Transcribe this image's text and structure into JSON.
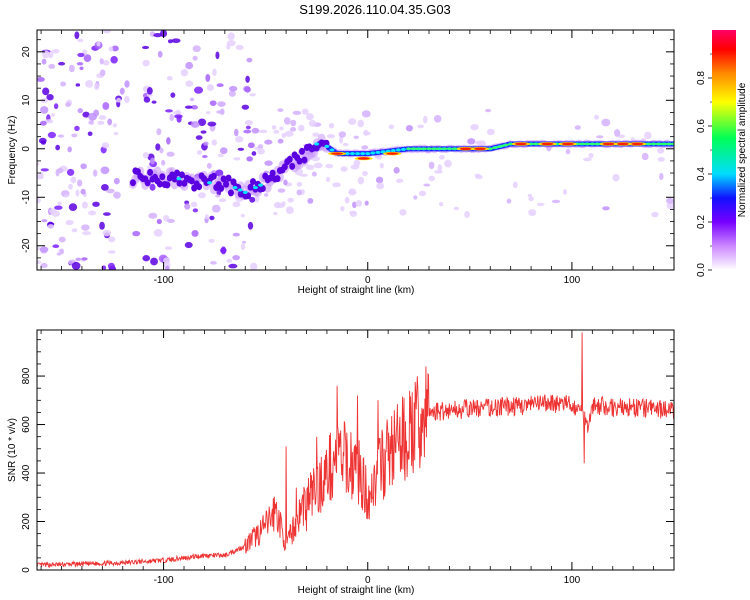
{
  "title": "S199.2026.110.04.35.G03",
  "spectrogram": {
    "type": "heatmap",
    "xlabel": "Height of straight line (km)",
    "ylabel": "Frequency (Hz)",
    "xlim": [
      -162,
      150
    ],
    "ylim": [
      -25,
      24.5
    ],
    "xticks": [
      -100,
      0,
      100
    ],
    "xtick_labels": [
      "-100",
      "0",
      "100"
    ],
    "yticks": [
      -20,
      -10,
      0,
      10,
      20
    ],
    "ytick_labels": [
      "-20",
      "-10",
      "0",
      "10",
      "20"
    ],
    "colorbar": {
      "label": "Normalized spectral amplitude",
      "range": [
        0,
        1
      ],
      "ticks": [
        0.0,
        0.2,
        0.4,
        0.6,
        0.8
      ],
      "tick_labels": [
        "0.0",
        "0.2",
        "0.4",
        "0.6",
        "0.8"
      ],
      "colors": [
        "#ffffff",
        "#cc88ff",
        "#7700ff",
        "#1111ff",
        "#00ddff",
        "#00ff55",
        "#ffff00",
        "#ff8800",
        "#ff0000",
        "#ff0066"
      ]
    },
    "ridge_trace": {
      "height_km": [
        -110,
        -95,
        -80,
        -70,
        -60,
        -50,
        -40,
        -30,
        -25,
        -20,
        -15,
        -10,
        0,
        10,
        20,
        30,
        40,
        50,
        60,
        70,
        80,
        90,
        100,
        110,
        120,
        130,
        145
      ],
      "frequency_hz": [
        -6,
        -6,
        -7,
        -7,
        -9,
        -7,
        -4,
        -1,
        1,
        0.5,
        -1,
        -1,
        -1,
        -0.5,
        0,
        0,
        0,
        0,
        0,
        1,
        1,
        1,
        1,
        1,
        1,
        1,
        1
      ]
    }
  },
  "snr": {
    "type": "line",
    "xlabel": "Height of straight line (km)",
    "ylabel": "SNR (10 * v/v)",
    "xlim": [
      -162,
      150
    ],
    "ylim": [
      0,
      990
    ],
    "xticks": [
      -100,
      0,
      100
    ],
    "xtick_labels": [
      "-100",
      "0",
      "100"
    ],
    "yticks": [
      0,
      200,
      400,
      600,
      800
    ],
    "ytick_labels": [
      "0",
      "200",
      "400",
      "600",
      "800"
    ],
    "color": "#ee3333",
    "x": [
      -162,
      -140,
      -120,
      -100,
      -90,
      -80,
      -70,
      -60,
      -50,
      -45,
      -40,
      -35,
      -30,
      -25,
      -20,
      -15,
      -10,
      -5,
      0,
      5,
      10,
      15,
      20,
      25,
      30,
      40,
      50,
      60,
      70,
      80,
      90,
      100,
      105,
      108,
      110,
      120,
      130,
      140,
      150
    ],
    "values": [
      20,
      25,
      30,
      40,
      50,
      60,
      60,
      100,
      180,
      250,
      100,
      200,
      300,
      330,
      400,
      470,
      450,
      420,
      300,
      400,
      480,
      520,
      560,
      600,
      650,
      660,
      665,
      670,
      675,
      680,
      690,
      680,
      650,
      600,
      680,
      670,
      670,
      665,
      660
    ],
    "spikes": [
      {
        "x": -40,
        "y": 510
      },
      {
        "x": -35,
        "y": 340
      },
      {
        "x": -30,
        "y": 160
      },
      {
        "x": -25,
        "y": 550
      },
      {
        "x": -15,
        "y": 760
      },
      {
        "x": -5,
        "y": 720
      },
      {
        "x": 5,
        "y": 700
      },
      {
        "x": 105,
        "y": 980
      },
      {
        "x": 106,
        "y": 440
      }
    ]
  }
}
